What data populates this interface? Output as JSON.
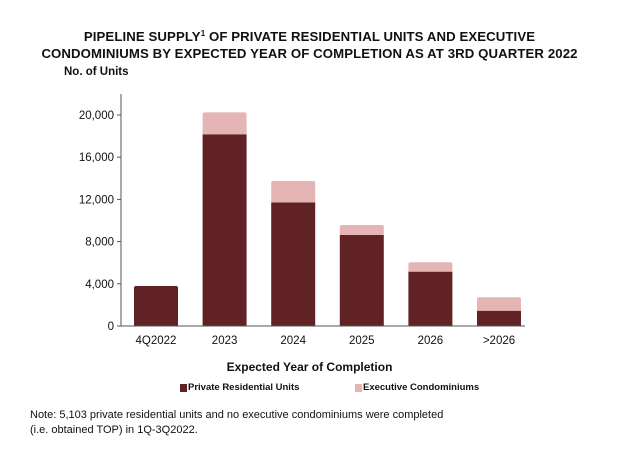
{
  "chart_data": {
    "type": "bar",
    "stacked": true,
    "title_parts": {
      "line1_before": "PIPELINE SUPPLY",
      "superscript": "1",
      "line1_after": " OF PRIVATE RESIDENTIAL UNITS AND EXECUTIVE",
      "line2": "CONDOMINIUMS BY EXPECTED YEAR OF COMPLETION AS AT 3RD QUARTER 2022"
    },
    "ylabel": "No. of Units",
    "xlabel": "Expected Year of Completion",
    "categories": [
      "4Q2022",
      "2023",
      "2024",
      "2025",
      "2026",
      ">2026"
    ],
    "series": [
      {
        "name": "Private Residential Units",
        "color": "#602224",
        "values": [
          3790,
          18170,
          11720,
          8630,
          5150,
          1450
        ]
      },
      {
        "name": "Executive Condominiums",
        "color": "#e5b5b6",
        "values": [
          0,
          2080,
          2020,
          940,
          890,
          1270
        ]
      }
    ],
    "ylim": [
      0,
      22000
    ],
    "yticks": [
      0,
      4000,
      8000,
      12000,
      16000,
      20000
    ],
    "ytick_labels": [
      "0",
      "4,000",
      "8,000",
      "12,000",
      "16,000",
      "20,000"
    ],
    "grid": false,
    "legend_position": "bottom-center"
  },
  "note": {
    "line1": "Note: 5,103 private residential units and no executive condominiums were completed",
    "line2": "(i.e. obtained TOP) in 1Q-3Q2022."
  }
}
